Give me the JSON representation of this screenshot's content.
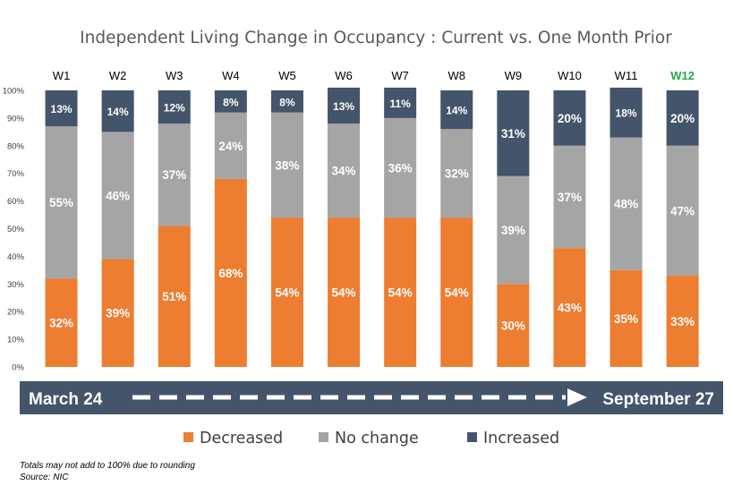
{
  "chart_data": {
    "type": "bar",
    "stacked": true,
    "title": "Independent Living Change in Occupancy : Current vs. One Month Prior",
    "categories": [
      "W1",
      "W2",
      "W3",
      "W4",
      "W5",
      "W6",
      "W7",
      "W8",
      "W9",
      "W10",
      "W11",
      "W12"
    ],
    "highlight_category": "W12",
    "series": [
      {
        "name": "Decreased",
        "color": "#ed7d31",
        "values": [
          32,
          39,
          51,
          68,
          54,
          54,
          54,
          54,
          30,
          43,
          35,
          33
        ]
      },
      {
        "name": "No change",
        "color": "#a5a5a5",
        "values": [
          55,
          46,
          37,
          24,
          38,
          34,
          36,
          32,
          39,
          37,
          48,
          47
        ]
      },
      {
        "name": "Increased",
        "color": "#44546a",
        "values": [
          13,
          14,
          12,
          8,
          8,
          13,
          11,
          14,
          31,
          20,
          18,
          20
        ]
      }
    ],
    "ylim": [
      0,
      100
    ],
    "yticks": [
      "0%",
      "10%",
      "20%",
      "30%",
      "40%",
      "50%",
      "60%",
      "70%",
      "80%",
      "90%",
      "100%"
    ],
    "grid": false,
    "legend": "bottom"
  },
  "timeline": {
    "start": "March 24",
    "end": "September 27",
    "color": "#44546a"
  },
  "footnote": {
    "line1": "Totals may not add to 100% due to rounding",
    "line2": "Source: NIC"
  }
}
